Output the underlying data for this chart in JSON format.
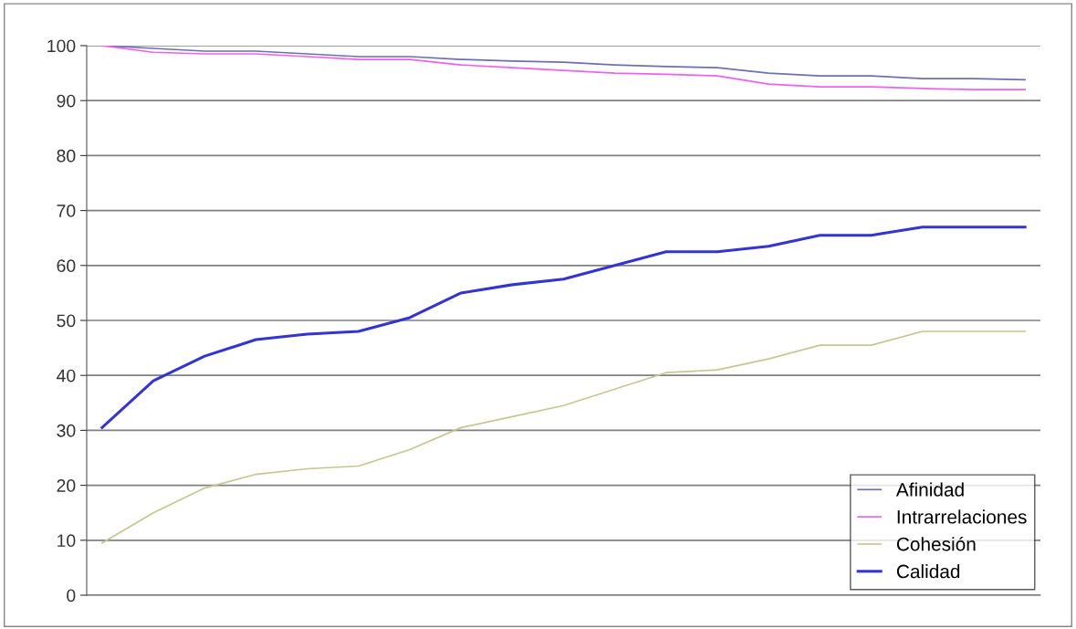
{
  "chart_data": {
    "type": "line",
    "categories": [
      null,
      null,
      null,
      null,
      null,
      null,
      null,
      null,
      null,
      null,
      null,
      null,
      null,
      null,
      null,
      null,
      null,
      null,
      null
    ],
    "series": [
      {
        "name": "Afinidad",
        "color": "#6e6eb4",
        "values": [
          100,
          99.5,
          99,
          99,
          98.5,
          98,
          98,
          97.5,
          97.2,
          97,
          96.5,
          96.2,
          96,
          95,
          94.5,
          94.5,
          94,
          94,
          93.8
        ]
      },
      {
        "name": "Intrarrelaciones",
        "color": "#f060f0",
        "values": [
          100,
          98.8,
          98.5,
          98.5,
          98,
          97.5,
          97.5,
          96.5,
          96,
          95.5,
          95,
          94.8,
          94.5,
          93,
          92.5,
          92.5,
          92.2,
          92,
          92
        ]
      },
      {
        "name": "Cohesión",
        "color": "#c4c890",
        "values": [
          9.5,
          15,
          19.5,
          22,
          23,
          23.5,
          26.5,
          30.5,
          32.5,
          34.5,
          37.5,
          40.5,
          41,
          43,
          45.5,
          45.5,
          48,
          48,
          48
        ]
      },
      {
        "name": "Calidad",
        "color": "#3434d0",
        "values": [
          30.5,
          39,
          43.5,
          46.5,
          47.5,
          48,
          50.5,
          55,
          56.5,
          57.5,
          60,
          62.5,
          62.5,
          63.5,
          65.5,
          65.5,
          67,
          67,
          67
        ]
      }
    ],
    "ylim": [
      0,
      100
    ],
    "yticks": [
      0,
      10,
      20,
      30,
      40,
      50,
      60,
      70,
      80,
      90,
      100
    ],
    "grid": "y",
    "legend": "bottom right",
    "marker": "none",
    "line_style": "solid"
  }
}
